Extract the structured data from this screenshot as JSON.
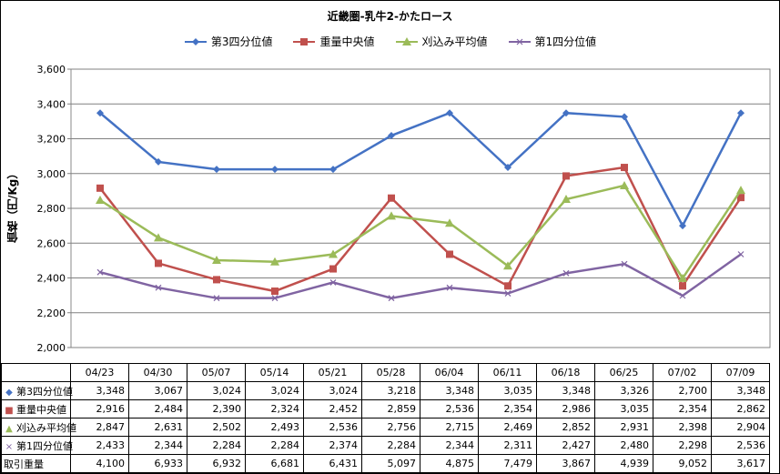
{
  "chart_data": {
    "type": "line",
    "title": "近畿圏-乳牛2-かたロース",
    "ylabel": "価格（円/Kg）",
    "ylim": [
      2000,
      3600
    ],
    "yticks": [
      "2,000",
      "2,200",
      "2,400",
      "2,600",
      "2,800",
      "3,000",
      "3,200",
      "3,400",
      "3,600"
    ],
    "categories": [
      "04/23",
      "04/30",
      "05/07",
      "05/14",
      "05/21",
      "05/28",
      "06/04",
      "06/11",
      "06/18",
      "06/25",
      "07/02",
      "07/09"
    ],
    "grid": true,
    "legend_position": "top",
    "series": [
      {
        "name": "第3四分位値",
        "color": "#4472C4",
        "marker": "diamond",
        "values": [
          3348,
          3067,
          3024,
          3024,
          3024,
          3218,
          3348,
          3035,
          3348,
          3326,
          2700,
          3348
        ]
      },
      {
        "name": "重量中央値",
        "color": "#C0504D",
        "marker": "square",
        "values": [
          2916,
          2484,
          2390,
          2324,
          2452,
          2859,
          2536,
          2354,
          2986,
          3035,
          2354,
          2862
        ]
      },
      {
        "name": "刈込み平均値",
        "color": "#9BBB59",
        "marker": "triangle",
        "values": [
          2847,
          2631,
          2502,
          2493,
          2536,
          2756,
          2715,
          2469,
          2852,
          2931,
          2398,
          2904
        ]
      },
      {
        "name": "第1四分位値",
        "color": "#8064A2",
        "marker": "x",
        "values": [
          2433,
          2344,
          2284,
          2284,
          2374,
          2284,
          2344,
          2311,
          2427,
          2480,
          2298,
          2536
        ]
      }
    ],
    "table": {
      "rows": [
        {
          "label": "第3四分位値",
          "marker": "diamond",
          "color": "#4472C4",
          "cells": [
            "3,348",
            "3,067",
            "3,024",
            "3,024",
            "3,024",
            "3,218",
            "3,348",
            "3,035",
            "3,348",
            "3,326",
            "2,700",
            "3,348"
          ]
        },
        {
          "label": "重量中央値",
          "marker": "square",
          "color": "#C0504D",
          "cells": [
            "2,916",
            "2,484",
            "2,390",
            "2,324",
            "2,452",
            "2,859",
            "2,536",
            "2,354",
            "2,986",
            "3,035",
            "2,354",
            "2,862"
          ]
        },
        {
          "label": "刈込み平均値",
          "marker": "triangle",
          "color": "#9BBB59",
          "cells": [
            "2,847",
            "2,631",
            "2,502",
            "2,493",
            "2,536",
            "2,756",
            "2,715",
            "2,469",
            "2,852",
            "2,931",
            "2,398",
            "2,904"
          ]
        },
        {
          "label": "第1四分位値",
          "marker": "x",
          "color": "#8064A2",
          "cells": [
            "2,433",
            "2,344",
            "2,284",
            "2,284",
            "2,374",
            "2,284",
            "2,344",
            "2,311",
            "2,427",
            "2,480",
            "2,298",
            "2,536"
          ]
        },
        {
          "label": "取引重量",
          "marker": "",
          "color": "",
          "cells": [
            "4,100",
            "6,933",
            "6,932",
            "6,681",
            "6,431",
            "5,097",
            "4,875",
            "7,479",
            "3,867",
            "4,939",
            "9,052",
            "3,617"
          ]
        }
      ]
    }
  }
}
